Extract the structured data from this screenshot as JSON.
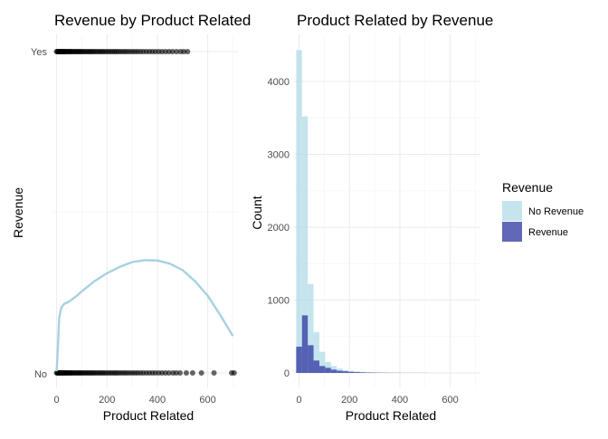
{
  "colors": {
    "points": "#000000",
    "smooth_line": "#a6d1e3",
    "no_revenue_fill": "#add8e6",
    "revenue_fill": "#2e35a0"
  },
  "chart_data": [
    {
      "type": "scatter",
      "title": "Revenue by Product Related",
      "xlabel": "Product Related",
      "ylabel": "Revenue",
      "xlim": [
        -20,
        720
      ],
      "x_ticks": [
        "0",
        "200",
        "400",
        "600"
      ],
      "y_categories": [
        "No",
        "Yes"
      ],
      "grid": true,
      "series": [
        {
          "category": "Yes",
          "x": [
            0,
            3,
            6,
            9,
            12,
            15,
            18,
            21,
            24,
            27,
            30,
            33,
            36,
            40,
            44,
            48,
            52,
            56,
            60,
            65,
            70,
            75,
            80,
            85,
            90,
            95,
            100,
            106,
            112,
            118,
            124,
            130,
            136,
            142,
            148,
            155,
            162,
            169,
            176,
            183,
            190,
            198,
            206,
            214,
            222,
            230,
            238,
            246,
            255,
            264,
            273,
            282,
            292,
            302,
            312,
            322,
            333,
            344,
            356,
            368,
            380,
            392,
            405,
            418,
            432,
            446,
            460,
            476,
            492,
            505,
            520
          ]
        },
        {
          "category": "No",
          "x": [
            0,
            3,
            6,
            9,
            12,
            15,
            18,
            21,
            24,
            27,
            30,
            33,
            36,
            40,
            44,
            48,
            52,
            56,
            60,
            65,
            70,
            75,
            80,
            85,
            90,
            95,
            100,
            106,
            112,
            118,
            124,
            130,
            136,
            142,
            148,
            155,
            162,
            169,
            176,
            183,
            190,
            198,
            206,
            214,
            222,
            230,
            238,
            246,
            255,
            264,
            273,
            282,
            292,
            302,
            312,
            322,
            333,
            344,
            356,
            368,
            380,
            392,
            405,
            418,
            432,
            446,
            462,
            475,
            490,
            515,
            540,
            575,
            625,
            695,
            705
          ]
        }
      ],
      "smooth_line": {
        "x": [
          0,
          5,
          10,
          15,
          20,
          30,
          45,
          60,
          80,
          100,
          150,
          200,
          250,
          300,
          350,
          400,
          450,
          500,
          550,
          600,
          650,
          700
        ],
        "y": [
          0.005,
          0.08,
          0.17,
          0.19,
          0.205,
          0.215,
          0.22,
          0.228,
          0.24,
          0.254,
          0.285,
          0.31,
          0.33,
          0.345,
          0.351,
          0.35,
          0.34,
          0.32,
          0.285,
          0.24,
          0.18,
          0.115
        ]
      }
    },
    {
      "type": "bar",
      "title": "Product Related by Revenue",
      "xlabel": "Product Related",
      "ylabel": "Count",
      "xlim": [
        -20,
        720
      ],
      "ylim": [
        0,
        4500
      ],
      "x_ticks": [
        "0",
        "200",
        "400",
        "600"
      ],
      "y_ticks": [
        "0",
        "1000",
        "2000",
        "3000",
        "4000"
      ],
      "bin_width": 23,
      "bin_starts": [
        -11.5,
        11.5,
        34.5,
        57.5,
        80.5,
        103.5,
        126.5,
        149.5,
        172.5,
        195.5,
        218.5,
        241.5,
        264.5,
        287.5,
        310.5,
        333.5,
        356.5,
        379.5,
        402.5,
        425.5,
        448.5,
        471.5,
        494.5,
        517.5,
        540.5,
        563.5,
        586.5,
        609.5,
        632.5,
        655.5,
        678.5
      ],
      "legend_title": "Revenue",
      "legend_position": "right",
      "grid": true,
      "series": [
        {
          "name": "No Revenue",
          "values": [
            4430,
            3520,
            1220,
            560,
            290,
            150,
            95,
            60,
            40,
            28,
            20,
            14,
            10,
            8,
            6,
            5,
            4,
            3,
            3,
            2,
            2,
            2,
            1,
            1,
            1,
            1,
            1,
            0,
            1,
            0,
            1
          ]
        },
        {
          "name": "Revenue",
          "values": [
            360,
            790,
            380,
            170,
            95,
            70,
            45,
            30,
            22,
            15,
            11,
            8,
            6,
            5,
            4,
            3,
            2,
            2,
            1,
            1,
            1,
            1,
            1,
            0,
            0,
            0,
            0,
            0,
            0,
            0,
            0
          ]
        }
      ]
    }
  ]
}
